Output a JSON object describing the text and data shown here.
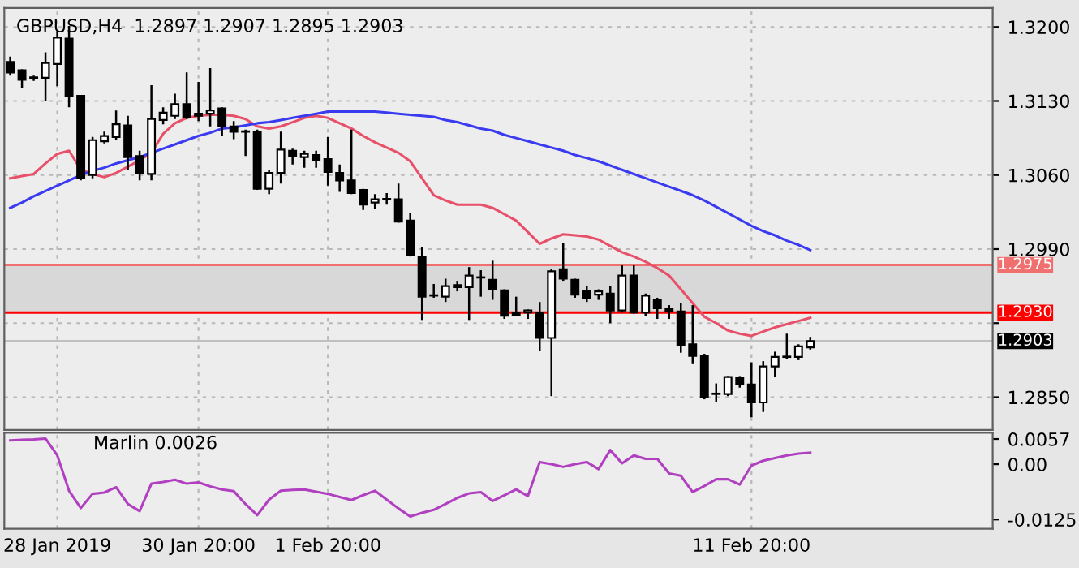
{
  "chart_data": [
    {
      "type": "candlestick",
      "title": "GBPUSD,H4  1.2897 1.2907 1.2895 1.2903",
      "categories": [
        null,
        null,
        null,
        null,
        null,
        null,
        null,
        null,
        null,
        null,
        null,
        null,
        null,
        null,
        null,
        null,
        null,
        null,
        null,
        null,
        null,
        null,
        null,
        null,
        null,
        null,
        null,
        null,
        null,
        null,
        null,
        null,
        null,
        null,
        null,
        null,
        null,
        null,
        null,
        null,
        null,
        null,
        null,
        null,
        null,
        null,
        null,
        null,
        null,
        null,
        null,
        null,
        null,
        null,
        null,
        null,
        null,
        null,
        null,
        null,
        null,
        null,
        null,
        null,
        null,
        null,
        null,
        null,
        null,
        null,
        null,
        null,
        null,
        null,
        null,
        null,
        null,
        null,
        null,
        null,
        null,
        null,
        null,
        null
      ],
      "ohlc": [
        [
          1.3167,
          1.3172,
          1.3154,
          1.3157
        ],
        [
          1.3159,
          1.316,
          1.3142,
          1.315
        ],
        [
          1.3152,
          1.3154,
          1.3149,
          1.3152
        ],
        [
          1.3152,
          1.3176,
          1.313,
          1.3166
        ],
        [
          1.3165,
          1.3195,
          1.3144,
          1.319
        ],
        [
          1.3189,
          1.3201,
          1.3124,
          1.3135
        ],
        [
          1.3135,
          1.3135,
          1.3055,
          1.3057
        ],
        [
          1.306,
          1.3096,
          1.3057,
          1.3093
        ],
        [
          1.3092,
          1.3101,
          1.309,
          1.3097
        ],
        [
          1.3096,
          1.3121,
          1.3093,
          1.3108
        ],
        [
          1.3107,
          1.3116,
          1.3065,
          1.3077
        ],
        [
          1.3078,
          1.3083,
          1.3055,
          1.3062
        ],
        [
          1.3061,
          1.3145,
          1.3055,
          1.3113
        ],
        [
          1.3112,
          1.3124,
          1.3108,
          1.3119
        ],
        [
          1.3116,
          1.3137,
          1.3113,
          1.3127
        ],
        [
          1.3127,
          1.3157,
          1.3113,
          1.3115
        ],
        [
          1.3118,
          1.3148,
          1.3111,
          1.3116
        ],
        [
          1.3118,
          1.3161,
          1.3106,
          1.3121
        ],
        [
          1.3123,
          1.3124,
          1.3097,
          1.3106
        ],
        [
          1.3106,
          1.3111,
          1.3094,
          1.3101
        ],
        [
          1.3101,
          1.3103,
          1.3078,
          1.3101
        ],
        [
          1.3101,
          1.3103,
          1.3046,
          1.3047
        ],
        [
          1.3047,
          1.3065,
          1.3042,
          1.3062
        ],
        [
          1.3062,
          1.3101,
          1.3052,
          1.3084
        ],
        [
          1.3083,
          1.3085,
          1.307,
          1.3078
        ],
        [
          1.3077,
          1.3083,
          1.3067,
          1.308
        ],
        [
          1.3079,
          1.3083,
          1.3067,
          1.3074
        ],
        [
          1.3075,
          1.3096,
          1.305,
          1.3063
        ],
        [
          1.3062,
          1.307,
          1.3044,
          1.3055
        ],
        [
          1.3055,
          1.3103,
          1.3042,
          1.3043
        ],
        [
          1.3046,
          1.3047,
          1.3027,
          1.3032
        ],
        [
          1.3034,
          1.3042,
          1.3028,
          1.3037
        ],
        [
          1.3037,
          1.3043,
          1.3032,
          1.3037
        ],
        [
          1.3037,
          1.3052,
          1.3015,
          1.3016
        ],
        [
          1.3017,
          1.3024,
          1.2983,
          1.2984
        ],
        [
          1.2983,
          1.2992,
          1.2923,
          1.2945
        ],
        [
          1.2946,
          1.2957,
          1.2944,
          1.2946
        ],
        [
          1.2945,
          1.2962,
          1.294,
          1.2955
        ],
        [
          1.2954,
          1.296,
          1.295,
          1.2956
        ],
        [
          1.2954,
          1.2973,
          1.2923,
          1.2965
        ],
        [
          1.2963,
          1.297,
          1.2945,
          1.2963
        ],
        [
          1.2961,
          1.2979,
          1.2942,
          1.2952
        ],
        [
          1.2951,
          1.2952,
          1.2924,
          1.2927
        ],
        [
          1.293,
          1.2945,
          1.2927,
          1.2928
        ],
        [
          1.293,
          1.2933,
          1.2924,
          1.2932
        ],
        [
          1.293,
          1.294,
          1.2894,
          1.2906
        ],
        [
          1.2906,
          1.2971,
          1.2851,
          1.2969
        ],
        [
          1.2971,
          1.2996,
          1.296,
          1.2962
        ],
        [
          1.2961,
          1.2962,
          1.2944,
          1.2947
        ],
        [
          1.295,
          1.2955,
          1.294,
          1.2944
        ],
        [
          1.2947,
          1.2952,
          1.2942,
          1.295
        ],
        [
          1.2948,
          1.2955,
          1.292,
          1.2932
        ],
        [
          1.2932,
          1.2975,
          1.293,
          1.2965
        ],
        [
          1.2965,
          1.2975,
          1.2929,
          1.293
        ],
        [
          1.293,
          1.2948,
          1.2927,
          1.2946
        ],
        [
          1.2942,
          1.2944,
          1.2924,
          1.2934
        ],
        [
          1.2934,
          1.2937,
          1.2924,
          1.2931
        ],
        [
          1.2931,
          1.2939,
          1.2892,
          1.2899
        ],
        [
          1.29,
          1.2937,
          1.2882,
          1.2889
        ],
        [
          1.2889,
          1.2891,
          1.2848,
          1.285
        ],
        [
          1.2853,
          1.2863,
          1.2845,
          1.2853
        ],
        [
          1.2853,
          1.287,
          1.2851,
          1.2869
        ],
        [
          1.2868,
          1.287,
          1.2859,
          1.2862
        ],
        [
          1.2862,
          1.2883,
          1.2831,
          1.2845
        ],
        [
          1.2845,
          1.2884,
          1.2836,
          1.2879
        ],
        [
          1.2879,
          1.2893,
          1.2869,
          1.2888
        ],
        [
          1.2888,
          1.291,
          1.2886,
          1.2888
        ],
        [
          1.2888,
          1.29,
          1.2885,
          1.2898
        ],
        [
          1.2897,
          1.2907,
          1.2895,
          1.2903
        ],
        null,
        null,
        null,
        null,
        null,
        null,
        null,
        null,
        null,
        null,
        null,
        null,
        null,
        null,
        null
      ],
      "color": "#000000",
      "series": [
        {
          "type": "line",
          "color": "#e8506a",
          "values": [
            1.3057,
            1.3059,
            1.3061,
            1.3071,
            1.308,
            1.3083,
            1.3065,
            1.3061,
            1.3058,
            1.3062,
            1.3068,
            1.3074,
            1.3081,
            1.3099,
            1.3109,
            1.3114,
            1.3116,
            1.3117,
            1.3117,
            1.3116,
            1.3113,
            1.3106,
            1.3104,
            1.3106,
            1.311,
            1.3114,
            1.3116,
            1.3114,
            1.3109,
            1.3104,
            1.3097,
            1.3091,
            1.3086,
            1.3081,
            1.3073,
            1.3057,
            1.3041,
            1.3036,
            1.3032,
            1.3032,
            1.3032,
            1.3029,
            1.3023,
            1.3017,
            1.3006,
            1.2995,
            1.3,
            1.3004,
            1.3003,
            1.3002,
            1.2999,
            1.2993,
            1.2987,
            1.2983,
            1.2978,
            1.2972,
            1.2965,
            1.2952,
            1.2939,
            1.2926,
            1.292,
            1.2913,
            1.291,
            1.2908,
            1.2912,
            1.2916,
            1.2919,
            1.2922,
            1.2925,
            null,
            null,
            null,
            null,
            null,
            null,
            null,
            null,
            null,
            null,
            null,
            null,
            null,
            null,
            null
          ]
        },
        {
          "type": "line",
          "color": "#3a3af0",
          "values": [
            1.3029,
            1.3034,
            1.304,
            1.3045,
            1.305,
            1.3055,
            1.306,
            1.3064,
            1.3067,
            1.3071,
            1.3074,
            1.3077,
            1.3081,
            1.3085,
            1.3089,
            1.3093,
            1.3097,
            1.31,
            1.3104,
            1.3105,
            1.3107,
            1.3109,
            1.311,
            1.3112,
            1.3114,
            1.3116,
            1.3118,
            1.312,
            1.312,
            1.312,
            1.312,
            1.312,
            1.3119,
            1.3118,
            1.3117,
            1.3116,
            1.3115,
            1.3112,
            1.311,
            1.3107,
            1.3104,
            1.3102,
            1.3098,
            1.3095,
            1.3092,
            1.3089,
            1.3086,
            1.3083,
            1.3079,
            1.3076,
            1.3073,
            1.3069,
            1.3065,
            1.3061,
            1.3057,
            1.3053,
            1.3049,
            1.3045,
            1.3041,
            1.3036,
            1.303,
            1.3024,
            1.3018,
            1.3012,
            1.3007,
            1.3003,
            1.2998,
            1.2994,
            1.2989,
            null,
            null,
            null,
            null,
            null,
            null,
            null,
            null,
            null,
            null,
            null,
            null,
            null,
            null,
            null
          ]
        }
      ],
      "ref_lines": [
        {
          "axis": "y",
          "value": 1.2975,
          "label": "1.2975",
          "color": "#f07070"
        },
        {
          "axis": "y",
          "value": 1.293,
          "label": "1.2930",
          "color": "#ff0000"
        },
        {
          "axis": "y",
          "value": 1.2903,
          "label": "1.2903",
          "color": "#c0c0c0"
        }
      ],
      "bands": [
        {
          "axis": "y",
          "from": 1.293,
          "to": 1.2975,
          "color": "#d8d8d8"
        }
      ],
      "ylim": [
        1.2819,
        1.3218
      ],
      "yticks": [
        {
          "value": 1.285,
          "label": "1.2850"
        },
        {
          "value": 1.292,
          "label": null
        },
        {
          "value": 1.299,
          "label": "1.2990"
        },
        {
          "value": 1.306,
          "label": "1.3060"
        },
        {
          "value": 1.313,
          "label": "1.3130"
        },
        {
          "value": 1.32,
          "label": "1.3200"
        }
      ],
      "grid": true,
      "tick_labels": "y"
    },
    {
      "type": "line",
      "title": "Marlin 0.0026",
      "categories": [
        null,
        null,
        null,
        null,
        "28 Jan 2019",
        null,
        null,
        null,
        null,
        null,
        null,
        null,
        null,
        null,
        null,
        null,
        "30 Jan 20:00",
        null,
        null,
        null,
        null,
        null,
        null,
        null,
        null,
        null,
        null,
        "1 Feb 20:00",
        null,
        null,
        null,
        null,
        null,
        null,
        null,
        null,
        null,
        null,
        null,
        null,
        null,
        null,
        null,
        null,
        null,
        null,
        null,
        null,
        null,
        null,
        null,
        null,
        null,
        null,
        null,
        null,
        null,
        null,
        null,
        null,
        null,
        null,
        null,
        "11 Feb 20:00",
        null,
        null,
        null,
        null,
        null,
        null,
        null,
        null,
        null,
        null,
        null,
        null,
        null,
        null,
        null,
        null,
        null,
        null,
        null,
        null
      ],
      "series": [
        {
          "color": "#b040c0",
          "values": [
            0.0054,
            0.0055,
            0.0056,
            0.0058,
            0.002,
            -0.006,
            -0.0099,
            -0.0067,
            -0.0064,
            -0.0052,
            -0.009,
            -0.0106,
            -0.0044,
            -0.004,
            -0.0035,
            -0.0044,
            -0.0041,
            -0.005,
            -0.0057,
            -0.0061,
            -0.009,
            -0.0115,
            -0.008,
            -0.006,
            -0.0058,
            -0.0057,
            -0.0062,
            -0.0067,
            -0.0074,
            -0.0081,
            -0.007,
            -0.006,
            -0.008,
            -0.01,
            -0.0118,
            -0.011,
            -0.0103,
            -0.009,
            -0.0076,
            -0.0066,
            -0.0063,
            -0.0083,
            -0.007,
            -0.0057,
            -0.0072,
            0.0005,
            0.0,
            -0.0006,
            0.0,
            0.0005,
            -0.0011,
            0.0032,
            0.0002,
            0.002,
            0.0012,
            0.0012,
            -0.0021,
            -0.0026,
            -0.0063,
            -0.0049,
            -0.0034,
            -0.0034,
            -0.0046,
            -0.0003,
            0.0008,
            0.0014,
            0.002,
            0.0024,
            0.0026,
            null,
            null,
            null,
            null,
            null,
            null,
            null,
            null,
            null,
            null,
            null,
            null,
            null,
            null,
            null
          ]
        }
      ],
      "ylim": [
        -0.0146,
        0.0071
      ],
      "yticks": [
        {
          "value": -0.0125,
          "label": "-0.0125"
        },
        {
          "value": 0,
          "label": "0.00"
        },
        {
          "value": 0.0057,
          "label": "0.0057"
        }
      ],
      "grid": "x"
    }
  ]
}
